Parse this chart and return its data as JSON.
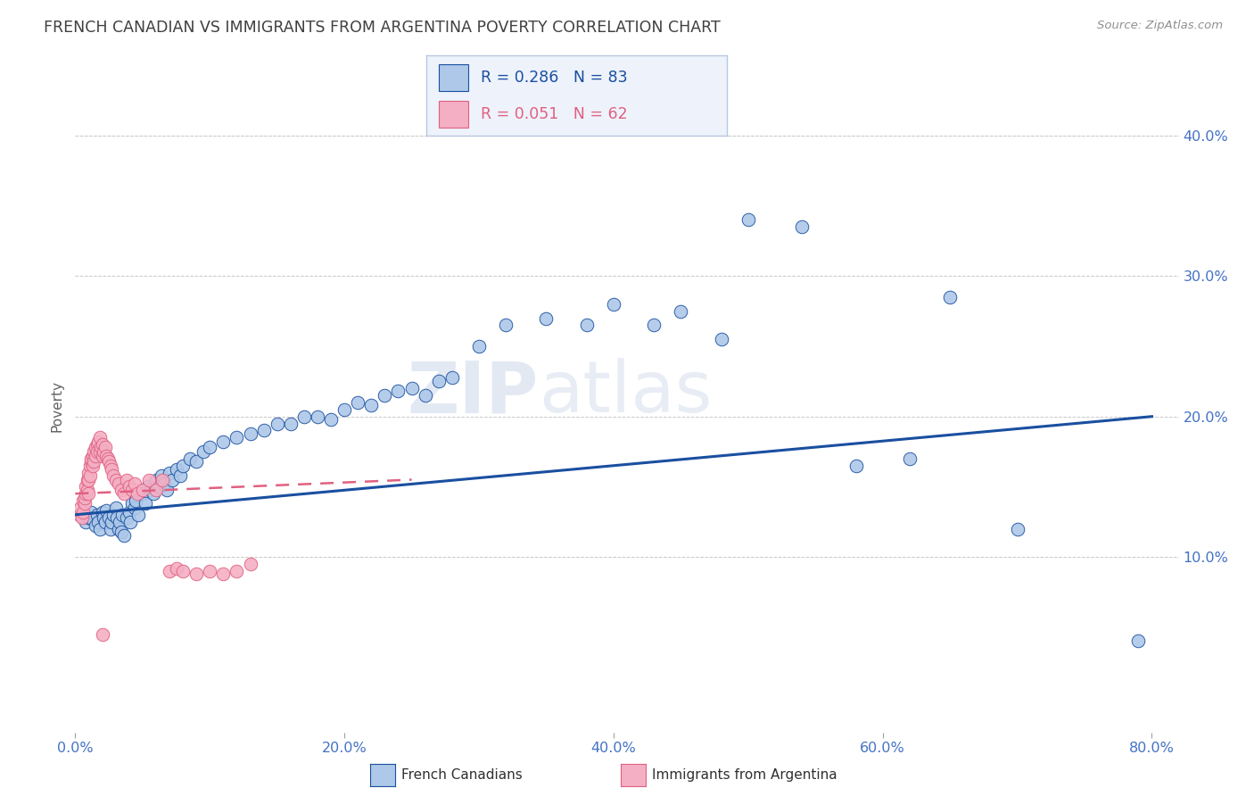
{
  "title": "FRENCH CANADIAN VS IMMIGRANTS FROM ARGENTINA POVERTY CORRELATION CHART",
  "source": "Source: ZipAtlas.com",
  "ylabel": "Poverty",
  "watermark": "ZIPatlas",
  "r_blue": 0.286,
  "n_blue": 83,
  "r_pink": 0.051,
  "n_pink": 62,
  "blue_color": "#adc8e8",
  "pink_color": "#f4afc4",
  "blue_line_color": "#1a4fa0",
  "pink_line_color": "#e06080",
  "axis_color": "#4472c4",
  "title_color": "#404040",
  "background_color": "#ffffff",
  "xlim": [
    0.0,
    0.82
  ],
  "ylim": [
    -0.025,
    0.44
  ],
  "xticks": [
    0.0,
    0.2,
    0.4,
    0.6,
    0.8
  ],
  "yticks": [
    0.1,
    0.2,
    0.3,
    0.4
  ],
  "xtick_labels": [
    "0.0%",
    "20.0%",
    "40.0%",
    "60.0%",
    "80.0%"
  ],
  "ytick_labels": [
    "10.0%",
    "20.0%",
    "30.0%",
    "40.0%"
  ],
  "blue_x": [
    0.005,
    0.008,
    0.01,
    0.012,
    0.013,
    0.015,
    0.016,
    0.017,
    0.018,
    0.02,
    0.021,
    0.022,
    0.023,
    0.025,
    0.026,
    0.027,
    0.028,
    0.03,
    0.031,
    0.032,
    0.033,
    0.034,
    0.035,
    0.036,
    0.038,
    0.04,
    0.041,
    0.042,
    0.044,
    0.045,
    0.047,
    0.05,
    0.052,
    0.054,
    0.056,
    0.058,
    0.06,
    0.062,
    0.064,
    0.066,
    0.068,
    0.07,
    0.072,
    0.075,
    0.078,
    0.08,
    0.085,
    0.09,
    0.095,
    0.1,
    0.11,
    0.12,
    0.13,
    0.14,
    0.15,
    0.16,
    0.17,
    0.18,
    0.19,
    0.2,
    0.21,
    0.22,
    0.23,
    0.24,
    0.25,
    0.26,
    0.27,
    0.28,
    0.3,
    0.32,
    0.35,
    0.38,
    0.4,
    0.43,
    0.45,
    0.48,
    0.5,
    0.54,
    0.58,
    0.62,
    0.65,
    0.7,
    0.79
  ],
  "blue_y": [
    0.13,
    0.125,
    0.128,
    0.132,
    0.127,
    0.122,
    0.13,
    0.125,
    0.12,
    0.132,
    0.128,
    0.125,
    0.133,
    0.128,
    0.12,
    0.125,
    0.13,
    0.135,
    0.128,
    0.12,
    0.125,
    0.118,
    0.13,
    0.115,
    0.128,
    0.132,
    0.125,
    0.138,
    0.135,
    0.14,
    0.13,
    0.145,
    0.138,
    0.15,
    0.148,
    0.145,
    0.155,
    0.15,
    0.158,
    0.152,
    0.148,
    0.16,
    0.155,
    0.162,
    0.158,
    0.165,
    0.17,
    0.168,
    0.175,
    0.178,
    0.182,
    0.185,
    0.188,
    0.19,
    0.195,
    0.195,
    0.2,
    0.2,
    0.198,
    0.205,
    0.21,
    0.208,
    0.215,
    0.218,
    0.22,
    0.215,
    0.225,
    0.228,
    0.25,
    0.265,
    0.27,
    0.265,
    0.28,
    0.265,
    0.275,
    0.255,
    0.34,
    0.335,
    0.165,
    0.17,
    0.285,
    0.12,
    0.04
  ],
  "pink_x": [
    0.003,
    0.004,
    0.005,
    0.006,
    0.006,
    0.007,
    0.007,
    0.008,
    0.008,
    0.009,
    0.009,
    0.01,
    0.01,
    0.01,
    0.011,
    0.011,
    0.012,
    0.012,
    0.013,
    0.013,
    0.014,
    0.014,
    0.015,
    0.015,
    0.016,
    0.016,
    0.017,
    0.018,
    0.018,
    0.019,
    0.02,
    0.02,
    0.021,
    0.022,
    0.023,
    0.024,
    0.025,
    0.026,
    0.027,
    0.028,
    0.03,
    0.032,
    0.034,
    0.036,
    0.038,
    0.04,
    0.042,
    0.044,
    0.046,
    0.05,
    0.055,
    0.06,
    0.065,
    0.07,
    0.075,
    0.08,
    0.09,
    0.1,
    0.11,
    0.12,
    0.13,
    0.02
  ],
  "pink_y": [
    0.13,
    0.135,
    0.128,
    0.132,
    0.14,
    0.138,
    0.142,
    0.145,
    0.15,
    0.155,
    0.148,
    0.16,
    0.155,
    0.145,
    0.165,
    0.158,
    0.168,
    0.17,
    0.172,
    0.165,
    0.175,
    0.168,
    0.178,
    0.172,
    0.18,
    0.175,
    0.182,
    0.185,
    0.175,
    0.178,
    0.18,
    0.172,
    0.175,
    0.178,
    0.172,
    0.17,
    0.168,
    0.165,
    0.162,
    0.158,
    0.155,
    0.152,
    0.148,
    0.145,
    0.155,
    0.15,
    0.148,
    0.152,
    0.145,
    0.148,
    0.155,
    0.148,
    0.155,
    0.09,
    0.092,
    0.09,
    0.088,
    0.09,
    0.088,
    0.09,
    0.095,
    0.045
  ],
  "legend_box_color": "#eef2fb",
  "legend_box_edge": "#b8c8e0"
}
